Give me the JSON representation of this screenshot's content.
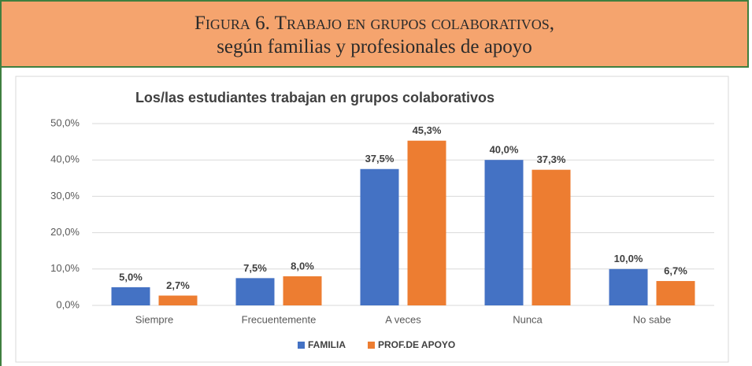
{
  "caption": [
    "Figura 6. Trabajo en grupos colaborativos,",
    "según familias y profesionales de apoyo"
  ],
  "chart_data": {
    "type": "bar",
    "title": "Los/las estudiantes trabajan en grupos colaborativos",
    "categories": [
      "Siempre",
      "Frecuentemente",
      "A veces",
      "Nunca",
      "No sabe"
    ],
    "series": [
      {
        "name": "FAMILIA",
        "color": "#4472c4",
        "values": [
          5.0,
          7.5,
          37.5,
          40.0,
          10.0
        ],
        "value_labels": [
          "5,0%",
          "7,5%",
          "37,5%",
          "40,0%",
          "10,0%"
        ]
      },
      {
        "name": "PROF.DE APOYO",
        "color": "#ed7d31",
        "values": [
          2.7,
          8.0,
          45.3,
          37.3,
          6.7
        ],
        "value_labels": [
          "2,7%",
          "8,0%",
          "45,3%",
          "37,3%",
          "6,7%"
        ]
      }
    ],
    "ylim": [
      0,
      50
    ],
    "yticks": [
      {
        "value": 0,
        "label": "0,0%"
      },
      {
        "value": 10,
        "label": "10,0%"
      },
      {
        "value": 20,
        "label": "20,0%"
      },
      {
        "value": 30,
        "label": "30,0%"
      },
      {
        "value": 40,
        "label": "40,0%"
      },
      {
        "value": 50,
        "label": "50,0%"
      }
    ],
    "grid": true,
    "legend": "bottom"
  }
}
